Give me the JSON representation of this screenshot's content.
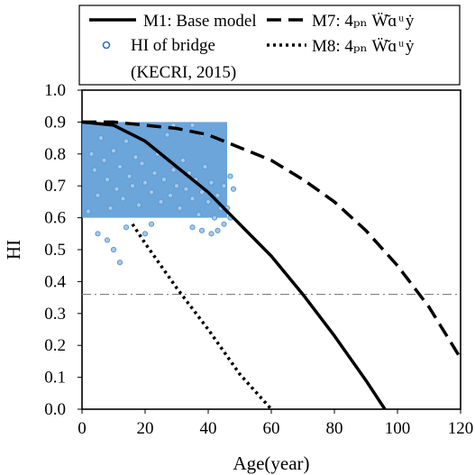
{
  "chart_data": {
    "type": "line",
    "xlabel": "Age(year)",
    "ylabel": "HI",
    "xlim": [
      0,
      120
    ],
    "ylim": [
      0.0,
      1.0
    ],
    "x_ticks": [
      "0",
      "20",
      "40",
      "60",
      "80",
      "100",
      "120"
    ],
    "y_ticks": [
      "0.0",
      "0.1",
      "0.2",
      "0.3",
      "0.4",
      "0.5",
      "0.6",
      "0.7",
      "0.8",
      "0.9",
      "1.0"
    ],
    "grid": false,
    "legend_position": "top",
    "reference_line": {
      "y": 0.36,
      "style": "dash-dot",
      "color": "#7f7f7f"
    },
    "series": [
      {
        "name": "M1: Base model",
        "style": "solid",
        "color": "#000000",
        "x": [
          0,
          10,
          20,
          30,
          40,
          50,
          60,
          70,
          80,
          90,
          96
        ],
        "y": [
          0.9,
          0.89,
          0.84,
          0.76,
          0.68,
          0.58,
          0.48,
          0.36,
          0.23,
          0.09,
          0.0
        ]
      },
      {
        "name": "M7: 4ₚₙ Ẅ͂ɑ ͧ ẏ",
        "style": "dashed",
        "color": "#000000",
        "x": [
          0,
          10,
          20,
          30,
          40,
          50,
          60,
          70,
          80,
          90,
          100,
          110,
          120
        ],
        "y": [
          0.9,
          0.9,
          0.89,
          0.88,
          0.86,
          0.82,
          0.78,
          0.72,
          0.65,
          0.56,
          0.45,
          0.32,
          0.16
        ]
      },
      {
        "name": "M8: 4ₚₙ Ẅ͂ɑ ͧ ẏ",
        "style": "dotted",
        "color": "#000000",
        "x": [
          16,
          20,
          30,
          40,
          50,
          60
        ],
        "y": [
          0.58,
          0.52,
          0.38,
          0.25,
          0.11,
          0.0
        ]
      }
    ],
    "scatter": {
      "name": "HI of bridge (KECRI, 2015)",
      "color": "#5b9bd5",
      "dense_region": {
        "x": [
          0,
          46
        ],
        "y": [
          0.6,
          0.9
        ]
      },
      "points": [
        [
          2,
          0.62
        ],
        [
          3,
          0.8
        ],
        [
          4,
          0.75
        ],
        [
          5,
          0.67
        ],
        [
          6,
          0.85
        ],
        [
          7,
          0.78
        ],
        [
          8,
          0.72
        ],
        [
          9,
          0.63
        ],
        [
          10,
          0.81
        ],
        [
          11,
          0.69
        ],
        [
          12,
          0.76
        ],
        [
          13,
          0.66
        ],
        [
          14,
          0.84
        ],
        [
          15,
          0.73
        ],
        [
          16,
          0.7
        ],
        [
          17,
          0.79
        ],
        [
          18,
          0.64
        ],
        [
          19,
          0.77
        ],
        [
          20,
          0.71
        ],
        [
          21,
          0.83
        ],
        [
          22,
          0.68
        ],
        [
          23,
          0.74
        ],
        [
          24,
          0.8
        ],
        [
          25,
          0.65
        ],
        [
          26,
          0.72
        ],
        [
          27,
          0.86
        ],
        [
          28,
          0.67
        ],
        [
          29,
          0.75
        ],
        [
          30,
          0.7
        ],
        [
          31,
          0.63
        ],
        [
          32,
          0.78
        ],
        [
          33,
          0.69
        ],
        [
          34,
          0.74
        ],
        [
          35,
          0.66
        ],
        [
          36,
          0.72
        ],
        [
          37,
          0.61
        ],
        [
          38,
          0.68
        ],
        [
          39,
          0.76
        ],
        [
          40,
          0.65
        ],
        [
          41,
          0.71
        ],
        [
          42,
          0.6
        ],
        [
          43,
          0.67
        ],
        [
          44,
          0.63
        ],
        [
          45,
          0.7
        ],
        [
          5,
          0.55
        ],
        [
          8,
          0.53
        ],
        [
          10,
          0.5
        ],
        [
          12,
          0.46
        ],
        [
          20,
          0.55
        ],
        [
          14,
          0.57
        ],
        [
          22,
          0.58
        ],
        [
          35,
          0.57
        ],
        [
          38,
          0.56
        ],
        [
          41,
          0.55
        ],
        [
          43,
          0.56
        ],
        [
          45,
          0.58
        ],
        [
          29,
          0.89
        ],
        [
          35,
          0.89
        ],
        [
          38,
          0.86
        ],
        [
          48,
          0.69
        ],
        [
          47,
          0.73
        ],
        [
          46,
          0.63
        ],
        [
          47,
          0.6
        ]
      ]
    },
    "legend": [
      {
        "label": "M1: Base model",
        "kind": "solid"
      },
      {
        "label": "M7: 4ₚₙ Ẅ͂ɑ ͧ ẏ",
        "kind": "dashed"
      },
      {
        "label": "HI of bridge",
        "kind": "marker"
      },
      {
        "label": "M8: 4ₚₙ Ẅ͂ɑ ͧ ẏ",
        "kind": "dotted"
      },
      {
        "label": "(KECRI, 2015)",
        "kind": "text"
      }
    ]
  }
}
